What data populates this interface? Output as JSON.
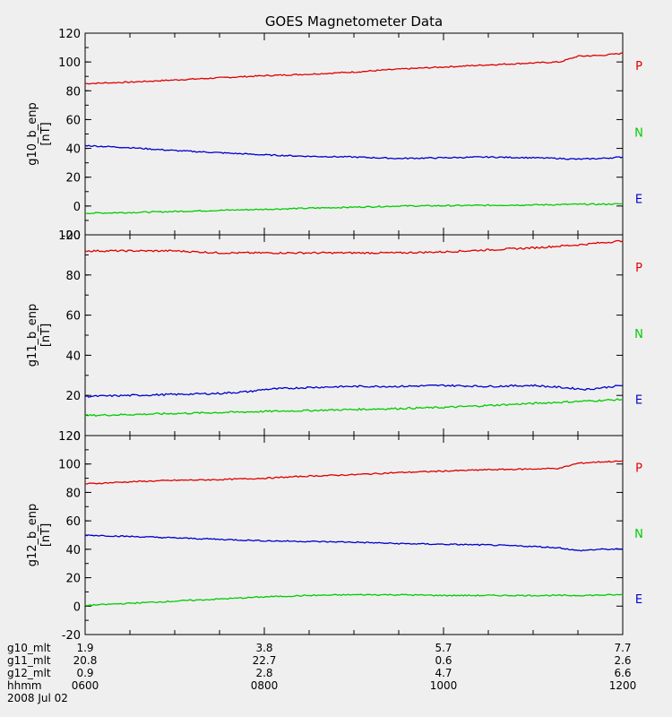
{
  "title": "GOES Magnetometer Data",
  "colors": {
    "P": "#e00000",
    "N": "#00cc00",
    "E": "#0000cc",
    "background": "#efefef"
  },
  "legend": {
    "placement": "right of each panel",
    "labels": [
      "P",
      "N",
      "E"
    ]
  },
  "chart_data": [
    {
      "type": "line",
      "ylabel": "g10_b_enp",
      "yunit": "[nT]",
      "ylim": [
        -20,
        120
      ],
      "yticks": [
        -20,
        0,
        20,
        40,
        60,
        80,
        100,
        120
      ],
      "xlim": [
        0,
        6
      ],
      "series": [
        {
          "name": "P",
          "x": [
            0,
            0.5,
            1,
            1.5,
            2,
            2.5,
            3,
            3.5,
            4,
            4.5,
            5,
            5.3,
            5.5,
            5.75,
            6
          ],
          "values": [
            85,
            86,
            87.5,
            89,
            90.5,
            91.5,
            93,
            95,
            96.5,
            98,
            99.3,
            100,
            104,
            104.5,
            106
          ]
        },
        {
          "name": "N",
          "x": [
            0,
            0.5,
            1,
            1.5,
            2,
            2.5,
            3,
            3.5,
            4,
            4.5,
            5,
            5.3,
            5.5,
            5.75,
            6
          ],
          "values": [
            -5,
            -4.5,
            -3.8,
            -3,
            -2.3,
            -1.5,
            -0.8,
            0,
            0.2,
            0.5,
            0.8,
            1,
            1.2,
            1.2,
            1.5
          ]
        },
        {
          "name": "E",
          "x": [
            0,
            0.5,
            1,
            1.5,
            2,
            2.5,
            3,
            3.5,
            4,
            4.5,
            5,
            5.3,
            5.5,
            5.75,
            6
          ],
          "values": [
            42,
            40.5,
            38.5,
            37,
            35.5,
            34.5,
            34,
            33,
            33.5,
            34,
            33.5,
            33,
            32.5,
            33,
            34
          ]
        }
      ]
    },
    {
      "type": "line",
      "ylabel": "g11_b_enp",
      "yunit": "[nT]",
      "ylim": [
        0,
        100
      ],
      "yticks": [
        0,
        20,
        40,
        60,
        80,
        100
      ],
      "xlim": [
        0,
        6
      ],
      "series": [
        {
          "name": "P",
          "x": [
            0,
            0.5,
            1,
            1.5,
            2,
            2.5,
            3,
            3.5,
            4,
            4.5,
            5,
            5.5,
            6
          ],
          "values": [
            92,
            92,
            92,
            91,
            91,
            91,
            91,
            91,
            91.5,
            92.5,
            93.5,
            95,
            97
          ]
        },
        {
          "name": "N",
          "x": [
            0,
            0.5,
            1,
            1.5,
            2,
            2.5,
            3,
            3.5,
            4,
            4.5,
            5,
            5.5,
            6
          ],
          "values": [
            10,
            10.5,
            11,
            11.5,
            12,
            12.5,
            13,
            13.5,
            14,
            15,
            16,
            17,
            18
          ]
        },
        {
          "name": "E",
          "x": [
            0,
            0.5,
            1,
            1.5,
            1.85,
            2,
            2.5,
            3,
            3.5,
            4,
            4.5,
            5,
            5.3,
            5.6,
            6
          ],
          "values": [
            19.5,
            20,
            20.5,
            21,
            22,
            23,
            24,
            24.5,
            24.5,
            25,
            24.5,
            25,
            24,
            23,
            25
          ]
        }
      ]
    },
    {
      "type": "line",
      "ylabel": "g12_b_enp",
      "yunit": "[nT]",
      "ylim": [
        -20,
        120
      ],
      "yticks": [
        -20,
        0,
        20,
        40,
        60,
        80,
        100,
        120
      ],
      "xlim": [
        0,
        6
      ],
      "series": [
        {
          "name": "P",
          "x": [
            0,
            0.5,
            1,
            1.5,
            2,
            2.5,
            3,
            3.5,
            4,
            4.5,
            5,
            5.3,
            5.5,
            5.75,
            6
          ],
          "values": [
            86,
            87.5,
            88.5,
            89,
            90,
            91.5,
            92.5,
            94,
            95,
            96,
            96.5,
            97,
            100.5,
            101.5,
            102
          ]
        },
        {
          "name": "N",
          "x": [
            0,
            0.5,
            1,
            1.5,
            2,
            2.5,
            3,
            3.5,
            4,
            4.5,
            5,
            5.5,
            6
          ],
          "values": [
            0.5,
            2,
            3.5,
            5,
            6.5,
            7.5,
            8,
            8,
            7.5,
            7.5,
            7.5,
            7.5,
            8
          ]
        },
        {
          "name": "E",
          "x": [
            0,
            0.5,
            1,
            1.5,
            2,
            2.5,
            3,
            3.5,
            4,
            4.5,
            5,
            5.3,
            5.5,
            5.75,
            6
          ],
          "values": [
            50,
            49,
            48,
            47,
            46,
            45.5,
            45,
            44,
            43.5,
            43,
            42,
            41,
            39,
            40,
            40
          ]
        }
      ]
    }
  ],
  "footer": {
    "row_labels": [
      "g10_mlt",
      "g11_mlt",
      "g12_mlt",
      "hhmm"
    ],
    "columns": [
      {
        "g10_mlt": "1.9",
        "g11_mlt": "20.8",
        "g12_mlt": "0.9",
        "hhmm": "0600"
      },
      {
        "g10_mlt": "3.8",
        "g11_mlt": "22.7",
        "g12_mlt": "2.8",
        "hhmm": "0800"
      },
      {
        "g10_mlt": "5.7",
        "g11_mlt": "0.6",
        "g12_mlt": "4.7",
        "hhmm": "1000"
      },
      {
        "g10_mlt": "7.7",
        "g11_mlt": "2.6",
        "g12_mlt": "6.6",
        "hhmm": "1200"
      }
    ],
    "date": "2008 Jul 02"
  }
}
